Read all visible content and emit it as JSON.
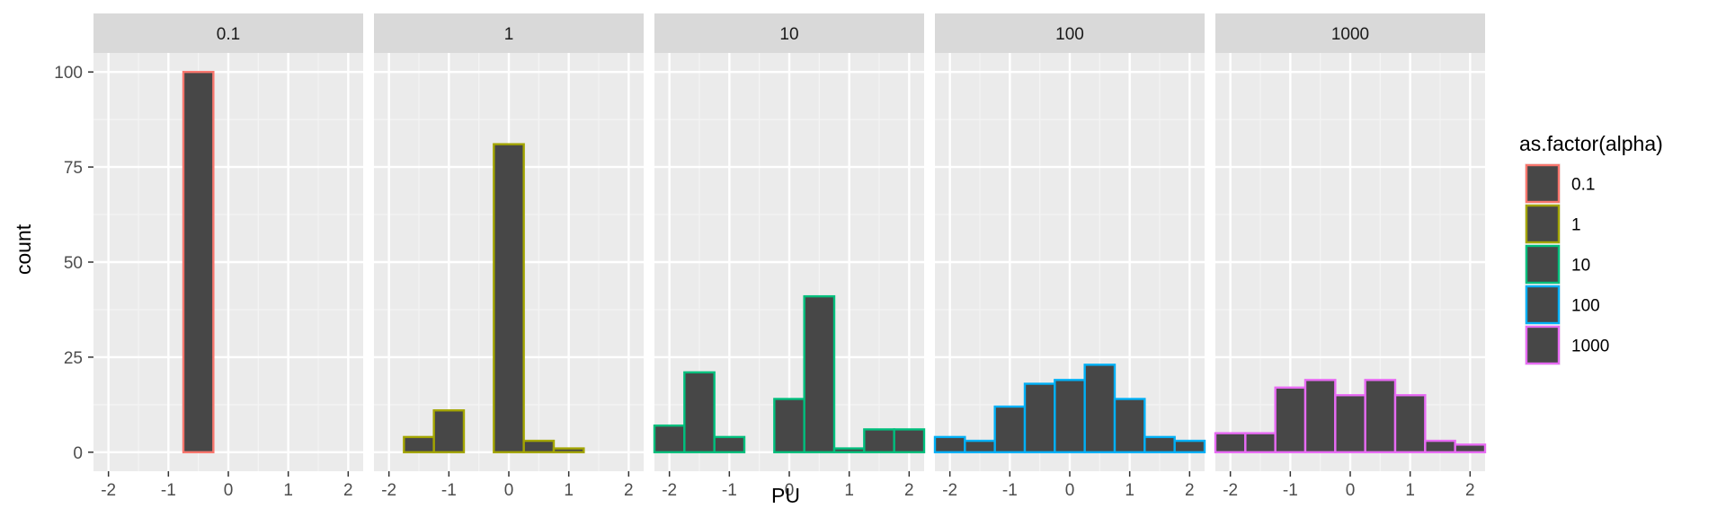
{
  "chart_data": {
    "type": "bar",
    "subtype": "faceted-histogram",
    "xlabel": "PU",
    "ylabel": "count",
    "x_ticks": [
      -2,
      -1,
      0,
      1,
      2
    ],
    "y_ticks": [
      0,
      25,
      50,
      75,
      100
    ],
    "xlim": [
      -2.25,
      2.25
    ],
    "ylim": [
      -5,
      105
    ],
    "bin_width": 0.5,
    "bin_centers": [
      -2.0,
      -1.5,
      -1.0,
      -0.5,
      0.0,
      0.5,
      1.0,
      1.5,
      2.0
    ],
    "grid": true,
    "fill_color": "#474747",
    "panel_background": "#ebebeb",
    "strip_background": "#d9d9d9",
    "legend": {
      "title": "as.factor(alpha)",
      "placement": "right",
      "entries": [
        "0.1",
        "1",
        "10",
        "100",
        "1000"
      ]
    },
    "series": [
      {
        "name": "0.1",
        "color": "#F8766D",
        "values": [
          0,
          0,
          0,
          100,
          0,
          0,
          0,
          0,
          0
        ]
      },
      {
        "name": "1",
        "color": "#A3A500",
        "values": [
          0,
          4,
          11,
          0,
          81,
          3,
          1,
          0,
          0
        ]
      },
      {
        "name": "10",
        "color": "#00BF7D",
        "values": [
          7,
          21,
          4,
          0,
          14,
          41,
          1,
          6,
          6
        ]
      },
      {
        "name": "100",
        "color": "#00B0F6",
        "values": [
          4,
          3,
          12,
          18,
          19,
          23,
          14,
          4,
          3
        ]
      },
      {
        "name": "1000",
        "color": "#E76BF3",
        "values": [
          5,
          5,
          17,
          19,
          15,
          19,
          15,
          3,
          2
        ]
      }
    ]
  }
}
